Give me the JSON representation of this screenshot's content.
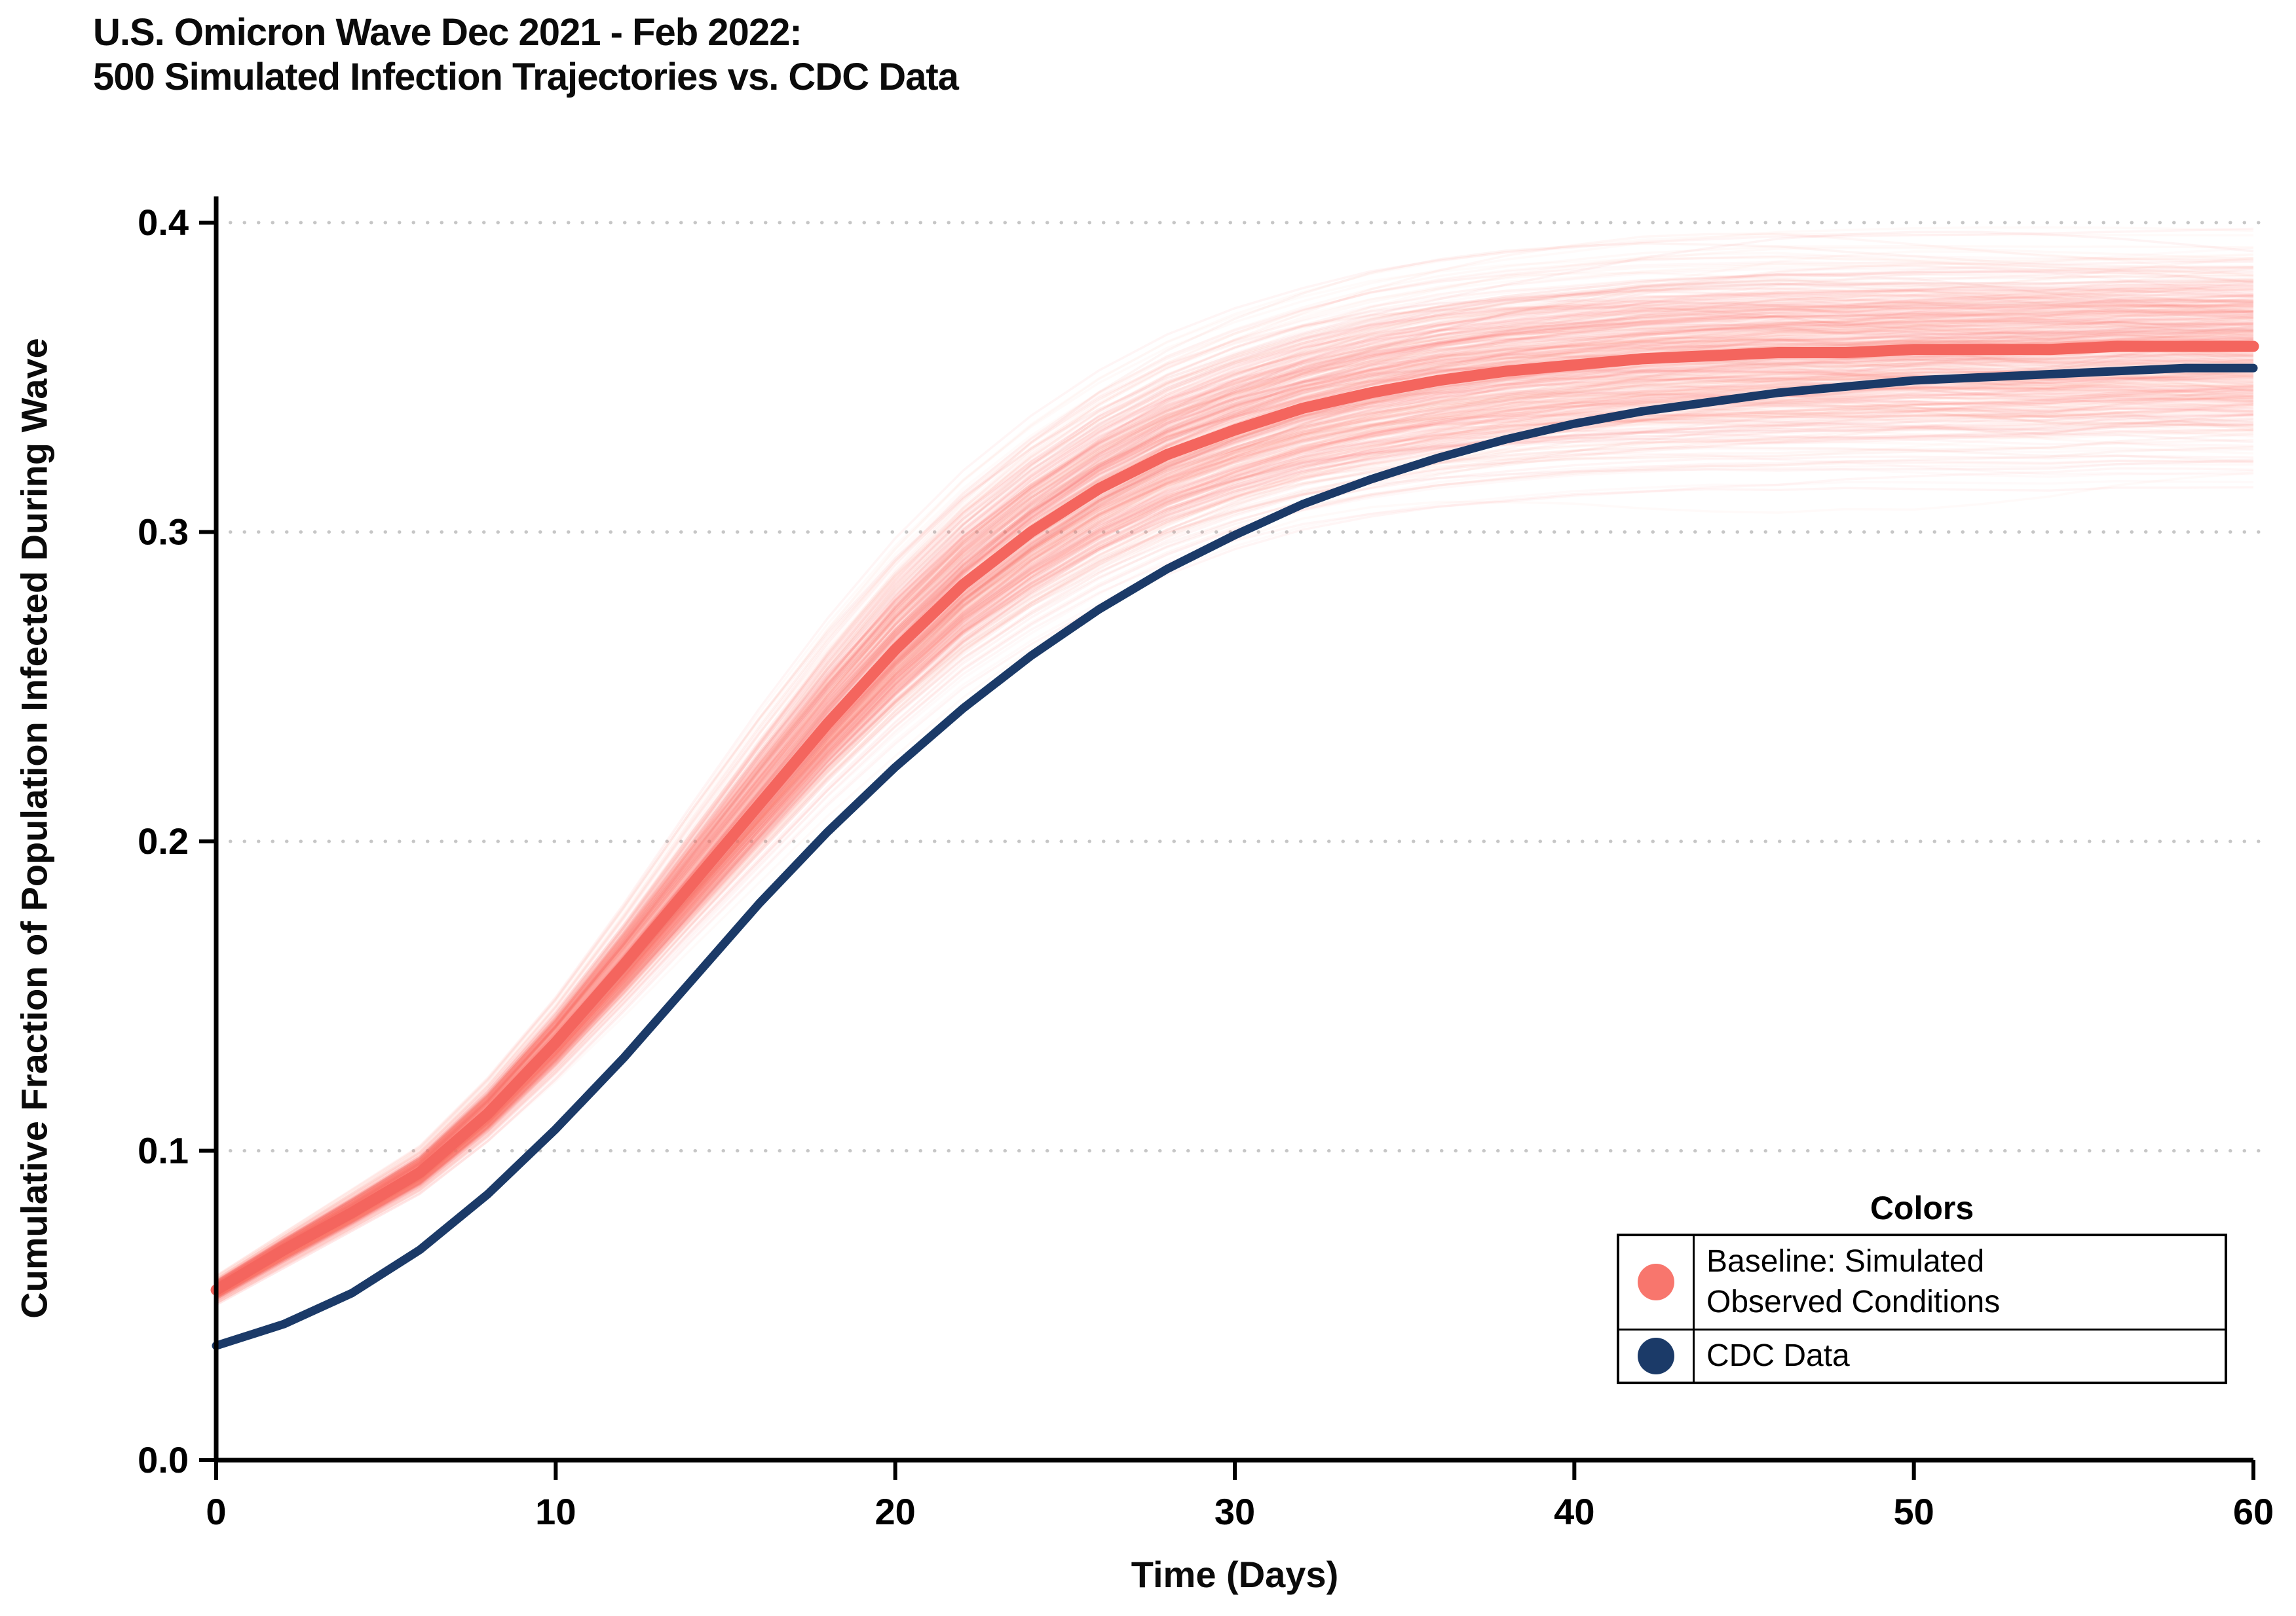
{
  "title": {
    "line1": "U.S. Omicron Wave Dec 2021 - Feb 2022:",
    "line2": "500 Simulated Infection Trajectories vs. CDC Data"
  },
  "axes": {
    "x_label": "Time (Days)",
    "y_label": "Cumulative Fraction of Population Infected During Wave",
    "x_ticks": [
      0,
      10,
      20,
      30,
      40,
      50,
      60
    ],
    "y_ticks": [
      "0.0",
      "0.1",
      "0.2",
      "0.3",
      "0.4"
    ],
    "x_range": [
      0,
      60
    ],
    "y_range": [
      0.0,
      0.4
    ]
  },
  "legend": {
    "title": "Colors",
    "entries": [
      {
        "label_line1": "Baseline: Simulated",
        "label_line2": "Observed Conditions",
        "color": "#F8766D"
      },
      {
        "label_line1": "CDC Data",
        "label_line2": "",
        "color": "#1B3A68"
      }
    ],
    "position": "bottom-right inside plot"
  },
  "colors": {
    "background": "#FFFFFF",
    "grid": "#C6C6C6",
    "axis": "#000000",
    "ensemble": "#F8766D",
    "baseline_mean": "#F4655E",
    "cdc": "#1B3A68"
  },
  "chart_data": {
    "type": "line",
    "title": "U.S. Omicron Wave Dec 2021 - Feb 2022: 500 Simulated Infection Trajectories vs. CDC Data",
    "xlabel": "Time (Days)",
    "ylabel": "Cumulative Fraction of Population Infected During Wave",
    "xlim": [
      0,
      60
    ],
    "ylim": [
      0.0,
      0.4
    ],
    "grid": "dotted horizontal gridlines at 0.1 intervals",
    "x": [
      0,
      2,
      4,
      6,
      8,
      10,
      12,
      14,
      16,
      18,
      20,
      22,
      24,
      26,
      28,
      30,
      32,
      34,
      36,
      38,
      40,
      42,
      44,
      46,
      48,
      50,
      52,
      54,
      56,
      58,
      60
    ],
    "series": [
      {
        "name": "Baseline: Simulated Observed Conditions (ensemble mean)",
        "color": "#F4655E",
        "values": [
          0.055,
          0.068,
          0.08,
          0.093,
          0.112,
          0.135,
          0.16,
          0.186,
          0.212,
          0.238,
          0.262,
          0.283,
          0.3,
          0.314,
          0.325,
          0.333,
          0.34,
          0.345,
          0.349,
          0.352,
          0.354,
          0.356,
          0.357,
          0.358,
          0.358,
          0.359,
          0.359,
          0.359,
          0.36,
          0.36,
          0.36
        ]
      },
      {
        "name": "CDC Data",
        "color": "#1B3A68",
        "values": [
          0.037,
          0.044,
          0.054,
          0.068,
          0.086,
          0.107,
          0.13,
          0.155,
          0.18,
          0.203,
          0.224,
          0.243,
          0.26,
          0.275,
          0.288,
          0.299,
          0.309,
          0.317,
          0.324,
          0.33,
          0.335,
          0.339,
          0.342,
          0.345,
          0.347,
          0.349,
          0.35,
          0.351,
          0.352,
          0.353,
          0.353
        ]
      }
    ],
    "ensemble": {
      "count": 500,
      "color": "#F8766D",
      "description": "500 semi-transparent simulated trajectories fanning around the baseline mean",
      "band_lower": [
        0.05,
        0.062,
        0.074,
        0.086,
        0.103,
        0.123,
        0.145,
        0.168,
        0.19,
        0.212,
        0.232,
        0.25,
        0.264,
        0.276,
        0.286,
        0.294,
        0.3,
        0.304,
        0.307,
        0.309,
        0.311,
        0.312,
        0.313,
        0.313,
        0.314,
        0.314,
        0.314,
        0.314,
        0.315,
        0.315,
        0.315
      ],
      "band_upper": [
        0.06,
        0.074,
        0.088,
        0.102,
        0.124,
        0.15,
        0.18,
        0.212,
        0.243,
        0.272,
        0.298,
        0.32,
        0.338,
        0.353,
        0.365,
        0.374,
        0.381,
        0.387,
        0.391,
        0.394,
        0.396,
        0.398,
        0.399,
        0.4,
        0.4,
        0.4,
        0.4,
        0.4,
        0.4,
        0.4,
        0.4
      ]
    }
  }
}
